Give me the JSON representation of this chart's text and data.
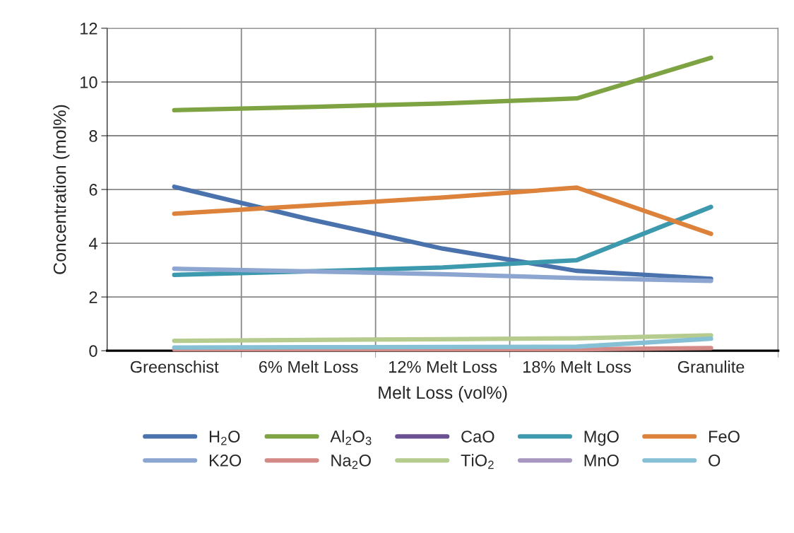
{
  "chart_data": {
    "type": "line",
    "xlabel": "Melt Loss (vol%)",
    "ylabel": "Concentration (mol%)",
    "categories": [
      "Greenschist",
      "6% Melt Loss",
      "12% Melt Loss",
      "18% Melt Loss",
      "Granulite"
    ],
    "ylim": [
      0,
      12
    ],
    "yticks": [
      0,
      2,
      4,
      6,
      8,
      10,
      12
    ],
    "grid": true,
    "legend": "bottom",
    "line_style": "solid",
    "series": [
      {
        "name": "H$_{2}$O",
        "color": "#4a72ad",
        "values": [
          6.1,
          4.9,
          3.8,
          2.97,
          2.68
        ]
      },
      {
        "name": "Al$_{2}$O$_{3}$",
        "color": "#7ea342",
        "values": [
          8.95,
          9.07,
          9.2,
          9.39,
          10.9
        ]
      },
      {
        "name": "CaO",
        "color": "#6a4f92",
        "values": [
          null,
          null,
          null,
          null,
          null
        ]
      },
      {
        "name": "MgO",
        "color": "#3d99ad",
        "values": [
          2.82,
          2.95,
          3.1,
          3.37,
          5.35
        ]
      },
      {
        "name": "FeO",
        "color": "#dd823a",
        "values": [
          5.1,
          5.4,
          5.7,
          6.07,
          4.35
        ]
      },
      {
        "name": "K2O",
        "color": "#8da6d1",
        "values": [
          3.05,
          2.95,
          2.85,
          2.7,
          2.6
        ]
      },
      {
        "name": "Na$_{2}$O",
        "color": "#d38a87",
        "values": [
          0.05,
          0.05,
          0.05,
          0.05,
          0.1
        ]
      },
      {
        "name": "TiO$_{2}$",
        "color": "#b5cc8e",
        "values": [
          0.37,
          0.4,
          0.43,
          0.46,
          0.57
        ]
      },
      {
        "name": "MnO",
        "color": "#a796bf",
        "values": [
          null,
          null,
          null,
          null,
          null
        ]
      },
      {
        "name": "O",
        "color": "#86c0d5",
        "values": [
          0.12,
          0.13,
          0.14,
          0.15,
          0.45
        ]
      }
    ]
  }
}
